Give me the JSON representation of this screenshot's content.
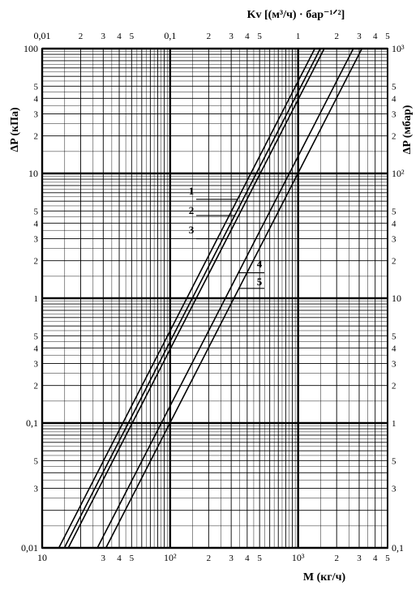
{
  "chart_data": {
    "type": "line",
    "x_scale": "log",
    "y_scale": "log",
    "grid": true,
    "top_axis": {
      "label": "Kv [(м³/ч) · бар⁻¹ᐟ²]",
      "range": [
        0.01,
        5
      ],
      "ticks": [
        {
          "v": 0.01,
          "t": "0,01"
        },
        {
          "v": 0.02,
          "t": "2"
        },
        {
          "v": 0.03,
          "t": "3"
        },
        {
          "v": 0.04,
          "t": "4"
        },
        {
          "v": 0.05,
          "t": "5"
        },
        {
          "v": 0.1,
          "t": "0,1"
        },
        {
          "v": 0.2,
          "t": "2"
        },
        {
          "v": 0.3,
          "t": "3"
        },
        {
          "v": 0.4,
          "t": "4"
        },
        {
          "v": 0.5,
          "t": "5"
        },
        {
          "v": 1,
          "t": "1"
        },
        {
          "v": 2,
          "t": "2"
        },
        {
          "v": 3,
          "t": "3"
        },
        {
          "v": 4,
          "t": "4"
        },
        {
          "v": 5,
          "t": "5"
        }
      ]
    },
    "bottom_axis": {
      "label": "M  (кг/ч)",
      "range": [
        10,
        5000
      ],
      "ticks": [
        {
          "v": 10,
          "t": "10"
        },
        {
          "v": 30,
          "t": "3"
        },
        {
          "v": 40,
          "t": "4"
        },
        {
          "v": 50,
          "t": "5"
        },
        {
          "v": 100,
          "t": "10²"
        },
        {
          "v": 200,
          "t": "2"
        },
        {
          "v": 300,
          "t": "3"
        },
        {
          "v": 400,
          "t": "4"
        },
        {
          "v": 500,
          "t": "5"
        },
        {
          "v": 1000,
          "t": "10³"
        },
        {
          "v": 2000,
          "t": "2"
        },
        {
          "v": 3000,
          "t": "3"
        },
        {
          "v": 4000,
          "t": "4"
        },
        {
          "v": 5000,
          "t": "5"
        }
      ]
    },
    "left_axis": {
      "label": "ΔP  (кПа)",
      "range": [
        0.01,
        100
      ],
      "ticks": [
        {
          "v": 0.01,
          "t": "0,01"
        },
        {
          "v": 0.03,
          "t": "3"
        },
        {
          "v": 0.05,
          "t": "5"
        },
        {
          "v": 0.1,
          "t": "0,1"
        },
        {
          "v": 0.2,
          "t": "2"
        },
        {
          "v": 0.3,
          "t": "3"
        },
        {
          "v": 0.4,
          "t": "4"
        },
        {
          "v": 0.5,
          "t": "5"
        },
        {
          "v": 1,
          "t": "1"
        },
        {
          "v": 2,
          "t": "2"
        },
        {
          "v": 3,
          "t": "3"
        },
        {
          "v": 4,
          "t": "4"
        },
        {
          "v": 5,
          "t": "5"
        },
        {
          "v": 10,
          "t": "10"
        },
        {
          "v": 20,
          "t": "2"
        },
        {
          "v": 30,
          "t": "3"
        },
        {
          "v": 40,
          "t": "4"
        },
        {
          "v": 50,
          "t": "5"
        },
        {
          "v": 100,
          "t": "100"
        }
      ]
    },
    "right_axis": {
      "label": "ΔP  (мбар)",
      "range": [
        0.1,
        1000
      ],
      "ticks": [
        {
          "v": 0.1,
          "t": "0,1"
        },
        {
          "v": 0.3,
          "t": "3"
        },
        {
          "v": 0.5,
          "t": "5"
        },
        {
          "v": 1,
          "t": "1"
        },
        {
          "v": 2,
          "t": "2"
        },
        {
          "v": 3,
          "t": "3"
        },
        {
          "v": 4,
          "t": "4"
        },
        {
          "v": 5,
          "t": "5"
        },
        {
          "v": 10,
          "t": "10"
        },
        {
          "v": 20,
          "t": "2"
        },
        {
          "v": 30,
          "t": "3"
        },
        {
          "v": 40,
          "t": "4"
        },
        {
          "v": 50,
          "t": "5"
        },
        {
          "v": 100,
          "t": "10²"
        },
        {
          "v": 200,
          "t": "2"
        },
        {
          "v": 300,
          "t": "3"
        },
        {
          "v": 400,
          "t": "4"
        },
        {
          "v": 500,
          "t": "5"
        },
        {
          "v": 1000,
          "t": "10³"
        }
      ]
    },
    "series": [
      {
        "name": "1",
        "x": [
          13.5,
          1350
        ],
        "y": [
          0.01,
          100
        ]
      },
      {
        "name": "2",
        "x": [
          14.9,
          1490
        ],
        "y": [
          0.01,
          100
        ]
      },
      {
        "name": "3",
        "x": [
          16.0,
          1600
        ],
        "y": [
          0.01,
          100
        ]
      },
      {
        "name": "4",
        "x": [
          27.0,
          2700
        ],
        "y": [
          0.01,
          100
        ]
      },
      {
        "name": "5",
        "x": [
          31.5,
          3150
        ],
        "y": [
          0.01,
          100
        ]
      }
    ]
  }
}
